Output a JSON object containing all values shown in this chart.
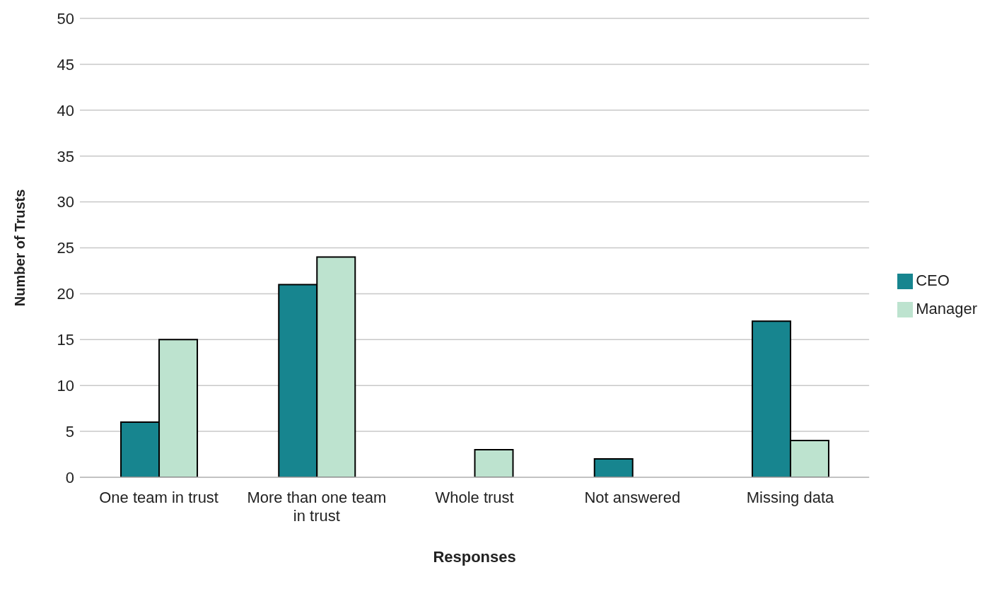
{
  "chart_data": {
    "type": "bar",
    "xlabel": "Responses",
    "ylabel": "Number of Trusts",
    "categories": [
      "One team in trust",
      "More than one team in trust",
      "Whole trust",
      "Not answered",
      "Missing data"
    ],
    "series": [
      {
        "name": "CEO",
        "color": "#17858f",
        "values": [
          6,
          21,
          0,
          2,
          17
        ]
      },
      {
        "name": "Manager",
        "color": "#bde3cf",
        "values": [
          15,
          24,
          3,
          0,
          4
        ]
      }
    ],
    "ylim": [
      0,
      50
    ],
    "yticks": [
      0,
      5,
      10,
      15,
      20,
      25,
      30,
      35,
      40,
      45,
      50
    ],
    "grid": "y",
    "legend": "right"
  }
}
